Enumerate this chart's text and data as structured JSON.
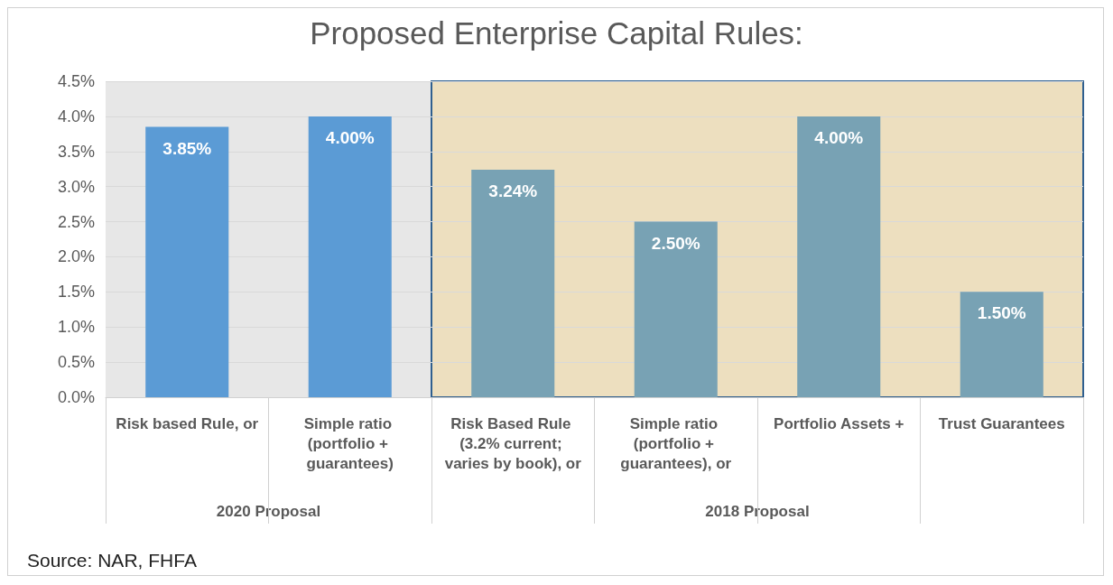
{
  "chart_data": {
    "type": "bar",
    "title": "Proposed Enterprise Capital Rules:",
    "categories": [
      "Risk based Rule, or",
      "Simple ratio (portfolio + guarantees)",
      "Risk Based Rule (3.2% current; varies by book), or",
      "Simple ratio (portfolio + guarantees), or",
      "Portfolio Assets +",
      "Trust Guarantees"
    ],
    "values": [
      3.85,
      4.0,
      3.24,
      2.5,
      4.0,
      1.5
    ],
    "colors": [
      "#5b9bd5",
      "#5b9bd5",
      "#78a2b4",
      "#78a2b4",
      "#78a2b4",
      "#78a2b4"
    ],
    "value_labels": [
      "3.85%",
      "4.00%",
      "3.24%",
      "2.50%",
      "4.00%",
      "1.50%"
    ],
    "ylim": [
      0,
      4.5
    ],
    "yticks": [
      {
        "value": 0,
        "label": "0.0%"
      },
      {
        "value": 0.5,
        "label": "0.5%"
      },
      {
        "value": 1,
        "label": "1.0%"
      },
      {
        "value": 1.5,
        "label": "1.5%"
      },
      {
        "value": 2,
        "label": "2.0%"
      },
      {
        "value": 2.5,
        "label": "2.5%"
      },
      {
        "value": 3,
        "label": "3.0%"
      },
      {
        "value": 3.5,
        "label": "3.5%"
      },
      {
        "value": 4,
        "label": "4.0%"
      },
      {
        "value": 4.5,
        "label": "4.5%"
      }
    ],
    "bands": [
      {
        "axis": "x",
        "from": "Risk based Rule, or",
        "to": "Simple ratio (portfolio + guarantees)",
        "label": "2020 Proposal",
        "color": "#e7e7e7"
      },
      {
        "axis": "x",
        "from": "Risk Based Rule (3.2% current; varies by book), or",
        "to": "Trust Guarantees",
        "label": "2018 Proposal",
        "color": "#eddfbf"
      }
    ],
    "annotations": [
      "Source: NAR, FHFA"
    ],
    "grid": "y"
  }
}
